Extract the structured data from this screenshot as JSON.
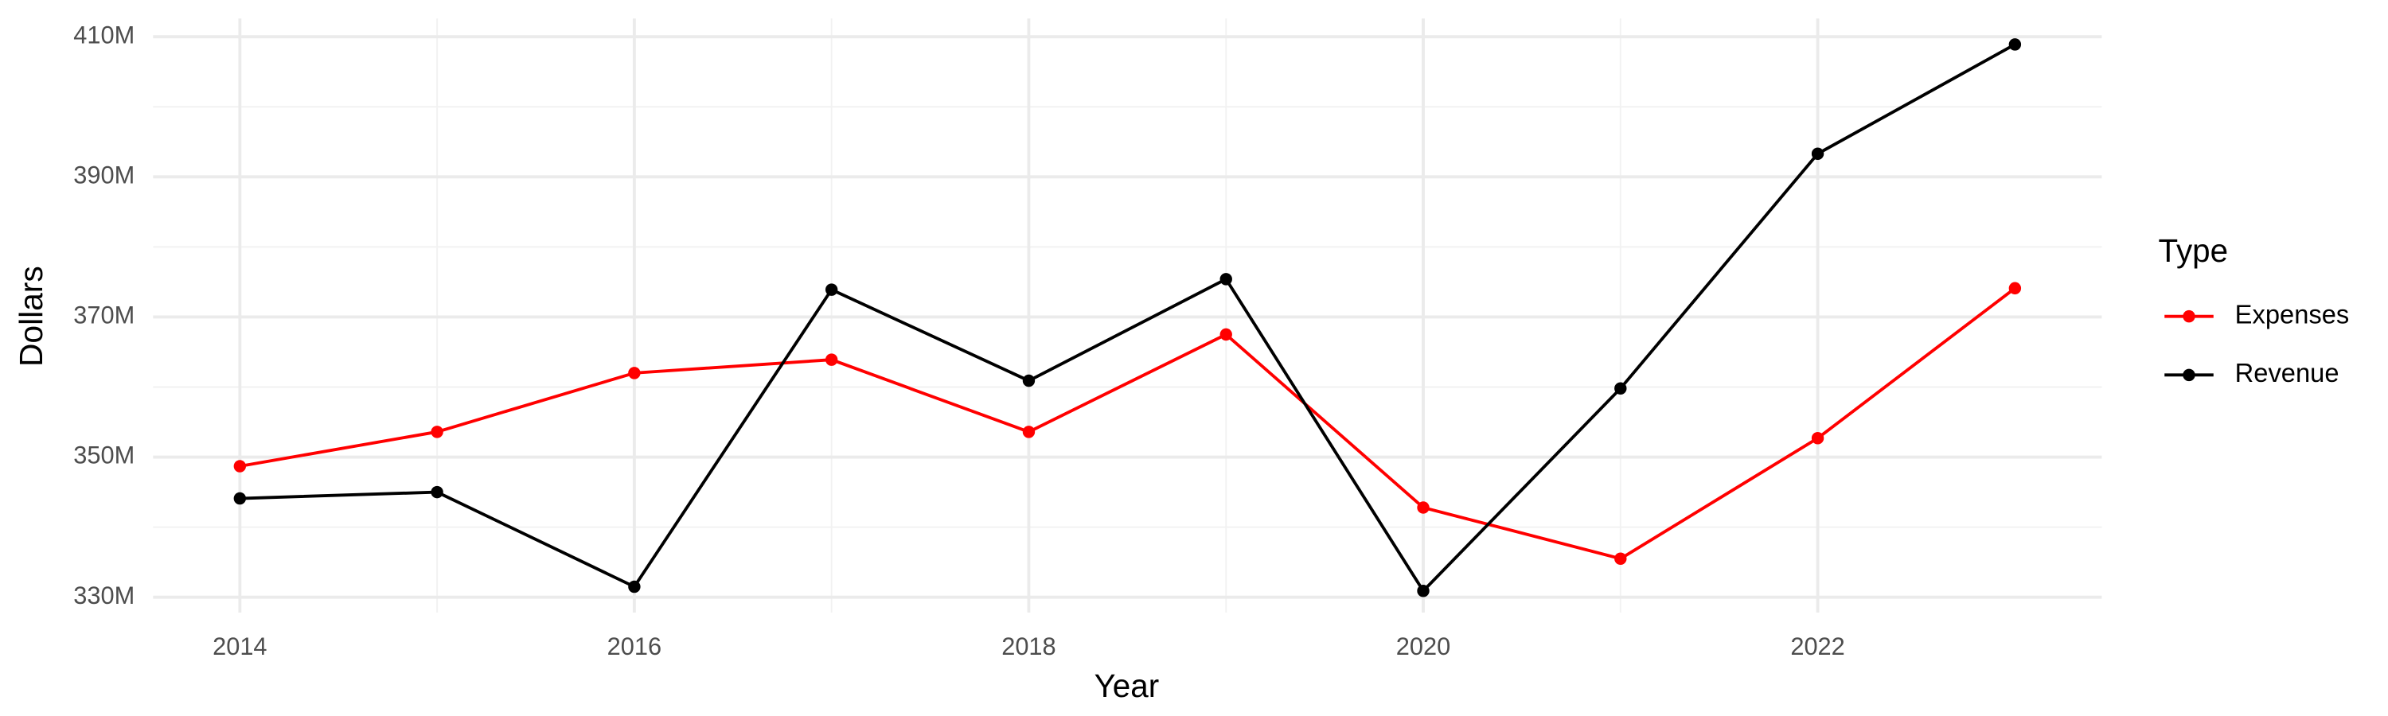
{
  "chart_data": {
    "type": "line",
    "x_label": "Year",
    "y_label": "Dollars",
    "x": [
      2014,
      2015,
      2016,
      2017,
      2018,
      2019,
      2020,
      2021,
      2022,
      2023
    ],
    "series": [
      {
        "name": "Expenses",
        "color": "#ff0000",
        "values": [
          348700000,
          353600000,
          362000000,
          363900000,
          353600000,
          367500000,
          342800000,
          335500000,
          352700000,
          374100000
        ]
      },
      {
        "name": "Revenue",
        "color": "#000000",
        "values": [
          344100000,
          345000000,
          331500000,
          373900000,
          360900000,
          375400000,
          330900000,
          359800000,
          393300000,
          408900000
        ]
      }
    ],
    "xlim": [
      2013.56,
      2023.44
    ],
    "ylim": [
      327800000,
      412600000
    ],
    "xticks": [
      2014,
      2016,
      2018,
      2020,
      2022
    ],
    "yticks": [
      {
        "value": 330000000,
        "label": "330M"
      },
      {
        "value": 350000000,
        "label": "350M"
      },
      {
        "value": 370000000,
        "label": "370M"
      },
      {
        "value": 390000000,
        "label": "390M"
      },
      {
        "value": 410000000,
        "label": "410M"
      }
    ],
    "grid": true,
    "legend_title": "Type",
    "legend_position": "right"
  }
}
